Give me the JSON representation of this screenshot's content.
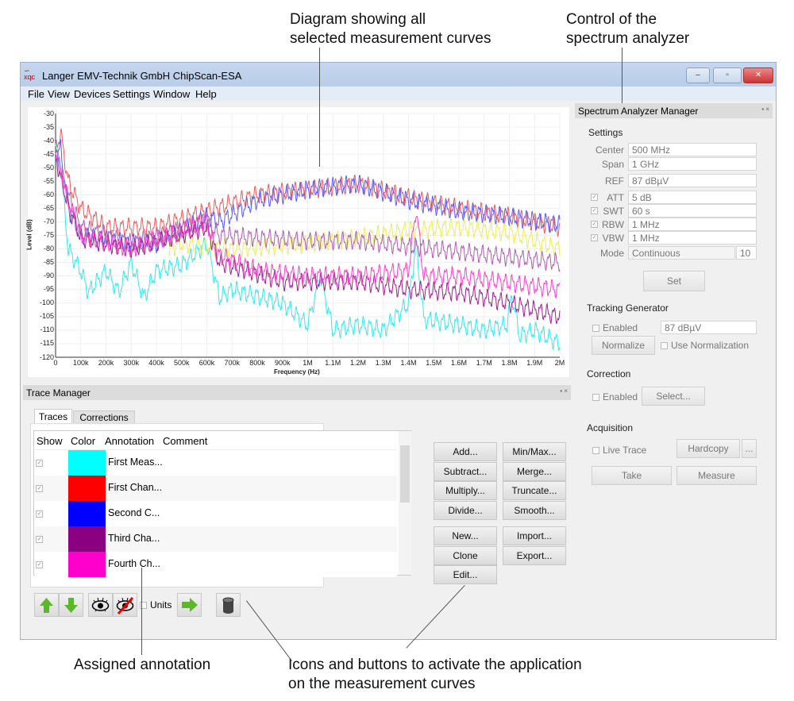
{
  "callouts": {
    "diagram": [
      "Diagram showing all",
      "selected measurement curves"
    ],
    "control": [
      "Control of the",
      "spectrum analyzer"
    ],
    "annotation": "Assigned annotation",
    "icons": [
      "Icons and buttons to activate the application",
      "on the measurement curves"
    ]
  },
  "window": {
    "title": "Langer EMV-Technik GmbH ChipScan-ESA",
    "logo_text": "xqc",
    "controls": {
      "minimize": "–",
      "maximize": "▫",
      "close": "✕"
    },
    "menu": [
      "File",
      "View",
      "Devices",
      "Settings",
      "Window",
      "Help"
    ]
  },
  "chart_data": {
    "type": "line",
    "xlabel": "Frequency (Hz)",
    "ylabel": "Level (dB)",
    "xlim": [
      0,
      2000000
    ],
    "ylim": [
      -120,
      -30
    ],
    "grid": true,
    "x_ticks": [
      "0",
      "100k",
      "200k",
      "300k",
      "400k",
      "500k",
      "600k",
      "700k",
      "800k",
      "900k",
      "1M",
      "1.1M",
      "1.2M",
      "1.3M",
      "1.4M",
      "1.5M",
      "1.6M",
      "1.7M",
      "1.8M",
      "1.9M",
      "2M"
    ],
    "y_ticks": [
      "-30",
      "-35",
      "-40",
      "-45",
      "-50",
      "-55",
      "-60",
      "-65",
      "-70",
      "-75",
      "-80",
      "-85",
      "-90",
      "-95",
      "-100",
      "-105",
      "-110",
      "-115",
      "-120"
    ],
    "series": [
      {
        "color": "#33e8ee",
        "points": [
          [
            0,
            -42
          ],
          [
            20000,
            -50
          ],
          [
            50000,
            -80
          ],
          [
            100000,
            -88
          ],
          [
            130000,
            -96
          ],
          [
            200000,
            -88
          ],
          [
            250000,
            -96
          ],
          [
            300000,
            -85
          ],
          [
            350000,
            -98
          ],
          [
            400000,
            -88
          ],
          [
            500000,
            -86
          ],
          [
            600000,
            -78
          ],
          [
            650000,
            -98
          ],
          [
            700000,
            -95
          ],
          [
            900000,
            -100
          ],
          [
            1000000,
            -108
          ],
          [
            1050000,
            -90
          ],
          [
            1100000,
            -110
          ],
          [
            1200000,
            -108
          ],
          [
            1300000,
            -110
          ],
          [
            1400000,
            -100
          ],
          [
            1430000,
            -78
          ],
          [
            1460000,
            -106
          ],
          [
            1600000,
            -108
          ],
          [
            1700000,
            -110
          ],
          [
            1790000,
            -108
          ],
          [
            1810000,
            -97
          ],
          [
            1840000,
            -112
          ],
          [
            1900000,
            -110
          ],
          [
            2000000,
            -115
          ]
        ]
      },
      {
        "color": "#f05a5a",
        "points": [
          [
            0,
            -43
          ],
          [
            20000,
            -37
          ],
          [
            50000,
            -55
          ],
          [
            100000,
            -65
          ],
          [
            200000,
            -72
          ],
          [
            400000,
            -72
          ],
          [
            600000,
            -66
          ],
          [
            800000,
            -60
          ],
          [
            1000000,
            -58
          ],
          [
            1200000,
            -56
          ],
          [
            1400000,
            -61
          ],
          [
            1600000,
            -65
          ],
          [
            1800000,
            -68
          ],
          [
            2000000,
            -72
          ]
        ]
      },
      {
        "color": "#5a5aff",
        "points": [
          [
            0,
            -45
          ],
          [
            20000,
            -43
          ],
          [
            50000,
            -65
          ],
          [
            100000,
            -75
          ],
          [
            300000,
            -78
          ],
          [
            400000,
            -78
          ],
          [
            600000,
            -68
          ],
          [
            650000,
            -70
          ],
          [
            800000,
            -62
          ],
          [
            1000000,
            -58
          ],
          [
            1200000,
            -56
          ],
          [
            1400000,
            -62
          ],
          [
            1600000,
            -66
          ],
          [
            1800000,
            -68
          ],
          [
            2000000,
            -71
          ]
        ]
      },
      {
        "color": "#ecec60",
        "points": [
          [
            450000,
            -80
          ],
          [
            500000,
            -78
          ],
          [
            700000,
            -80
          ],
          [
            1000000,
            -78
          ],
          [
            1200000,
            -76
          ],
          [
            1400000,
            -73
          ],
          [
            1600000,
            -72
          ],
          [
            1800000,
            -74
          ],
          [
            2000000,
            -80
          ]
        ]
      },
      {
        "color": "#b060b0",
        "points": [
          [
            0,
            -45
          ],
          [
            50000,
            -60
          ],
          [
            100000,
            -72
          ],
          [
            300000,
            -78
          ],
          [
            600000,
            -70
          ],
          [
            650000,
            -75
          ],
          [
            1000000,
            -77
          ],
          [
            1200000,
            -77
          ],
          [
            1400000,
            -79
          ],
          [
            1700000,
            -82
          ],
          [
            2000000,
            -85
          ]
        ]
      },
      {
        "color": "#a02090",
        "points": [
          [
            0,
            -46
          ],
          [
            50000,
            -64
          ],
          [
            100000,
            -76
          ],
          [
            300000,
            -80
          ],
          [
            600000,
            -72
          ],
          [
            650000,
            -85
          ],
          [
            900000,
            -92
          ],
          [
            1200000,
            -92
          ],
          [
            1400000,
            -95
          ],
          [
            1600000,
            -96
          ],
          [
            1800000,
            -100
          ],
          [
            2000000,
            -105
          ]
        ]
      },
      {
        "color": "#ff40c8",
        "points": [
          [
            0,
            -44
          ],
          [
            50000,
            -62
          ],
          [
            100000,
            -75
          ],
          [
            300000,
            -80
          ],
          [
            600000,
            -70
          ],
          [
            640000,
            -82
          ],
          [
            800000,
            -88
          ],
          [
            1000000,
            -90
          ],
          [
            1200000,
            -90
          ],
          [
            1400000,
            -88
          ],
          [
            1430000,
            -65
          ],
          [
            1460000,
            -90
          ],
          [
            1600000,
            -90
          ],
          [
            2000000,
            -95
          ]
        ]
      }
    ]
  },
  "spectrum": {
    "title": "Spectrum  Analyzer Manager",
    "settings_title": "Settings",
    "fields": [
      {
        "label": "Center",
        "value": "500 MHz",
        "checkbox": false
      },
      {
        "label": "Span",
        "value": "1 GHz",
        "checkbox": false
      },
      {
        "label": "REF",
        "value": "87 dBµV",
        "checkbox": false
      },
      {
        "label": "ATT",
        "value": "5 dB",
        "checkbox": true
      },
      {
        "label": "SWT",
        "value": "60 s",
        "checkbox": true
      },
      {
        "label": "RBW",
        "value": "1 MHz",
        "checkbox": true
      },
      {
        "label": "VBW",
        "value": "1 MHz",
        "checkbox": true
      }
    ],
    "mode_label": "Mode",
    "mode_value": "Continuous",
    "mode_count": "10",
    "set": "Set",
    "tracking_title": "Tracking Generator",
    "tracking_enabled": "Enabled",
    "tracking_value": "87 dBµV",
    "normalize": "Normalize",
    "use_normalization": "Use Normalization",
    "correction_title": "Correction",
    "correction_enabled": "Enabled",
    "select": "Select...",
    "acquisition_title": "Acquisition",
    "live_trace": "Live Trace",
    "hardcopy": "Hardcopy",
    "more": "...",
    "take": "Take",
    "measure": "Measure"
  },
  "trace_manager": {
    "title": "Trace Manager",
    "tabs": [
      "Traces",
      "Corrections"
    ],
    "columns": [
      "Show",
      "Color",
      "Annotation",
      "Comment"
    ],
    "rows": [
      {
        "show": true,
        "color": "#00ffff",
        "annotation": "First Meas...",
        "comment": ""
      },
      {
        "show": true,
        "color": "#ff0000",
        "annotation": "First Chan...",
        "comment": ""
      },
      {
        "show": true,
        "color": "#0000ff",
        "annotation": "Second C...",
        "comment": ""
      },
      {
        "show": true,
        "color": "#8b0080",
        "annotation": "Third Cha...",
        "comment": ""
      },
      {
        "show": true,
        "color": "#ff00cc",
        "annotation": "Fourth Ch...",
        "comment": ""
      }
    ],
    "buttons_col1": [
      "Add...",
      "Subtract...",
      "Multiply...",
      "Divide..."
    ],
    "buttons_col2": [
      "Min/Max...",
      "Merge...",
      "Truncate...",
      "Smooth..."
    ],
    "buttons_col3": [
      "New...",
      "Clone",
      "Edit..."
    ],
    "buttons_col4": [
      "Import...",
      "Export..."
    ],
    "units": "Units",
    "toolbar_icons": [
      "arrow-up-icon",
      "arrow-down-icon",
      "eye-icon",
      "eye-crossed-icon",
      "arrow-right-icon",
      "database-icon"
    ]
  }
}
